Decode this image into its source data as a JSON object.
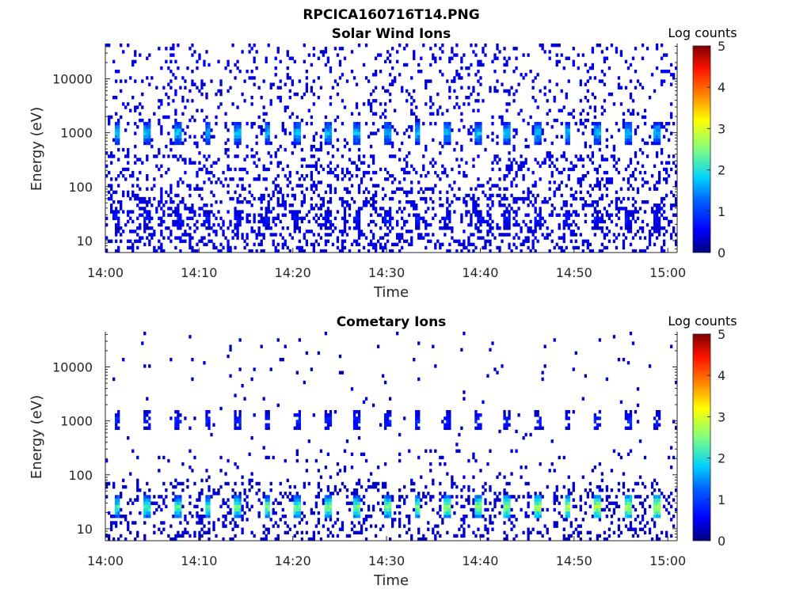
{
  "figure_title": "RPCICA160716T14.PNG",
  "chart_data": [
    {
      "type": "heatmap",
      "title": "Solar Wind Ions",
      "xlabel": "Time",
      "ylabel": "Energy (eV)",
      "x_ticks": [
        "14:00",
        "14:10",
        "14:20",
        "14:30",
        "14:40",
        "14:50",
        "15:00"
      ],
      "x_range": [
        "14:00",
        "15:01"
      ],
      "y_scale": "log",
      "y_ticks": [
        10,
        100,
        1000,
        10000
      ],
      "y_tick_labels": [
        "10",
        "100",
        "1000",
        "10000"
      ],
      "y_range": [
        6,
        45000
      ],
      "colorbar_label": "Log counts",
      "colorbar_ticks": [
        0,
        1,
        2,
        3,
        4,
        5
      ],
      "colorbar_range": [
        0,
        5
      ],
      "colormap": "jet",
      "grid": false,
      "features": [
        {
          "name": "solar wind peak",
          "energy_eV": 1000,
          "log_counts": 1.8,
          "period_min": 3.2
        },
        {
          "name": "low energy band",
          "energy_eV": 25,
          "log_counts": 0.7,
          "period_min": 3.2
        },
        {
          "name": "background",
          "energy_range_eV": [
            6,
            45000
          ],
          "log_counts": 0.3
        }
      ]
    },
    {
      "type": "heatmap",
      "title": "Cometary Ions",
      "xlabel": "Time",
      "ylabel": "Energy (eV)",
      "x_ticks": [
        "14:00",
        "14:10",
        "14:20",
        "14:30",
        "14:40",
        "14:50",
        "15:00"
      ],
      "x_range": [
        "14:00",
        "15:01"
      ],
      "y_scale": "log",
      "y_ticks": [
        10,
        100,
        1000,
        10000
      ],
      "y_tick_labels": [
        "10",
        "100",
        "1000",
        "10000"
      ],
      "y_range": [
        6,
        45000
      ],
      "colorbar_label": "Log counts",
      "colorbar_ticks": [
        0,
        1,
        2,
        3,
        4,
        5
      ],
      "colorbar_range": [
        0,
        5
      ],
      "colormap": "jet",
      "grid": false,
      "features": [
        {
          "name": "cometary ion peak",
          "energy_eV": 25,
          "log_counts": 2.3,
          "period_min": 3.2
        },
        {
          "name": "1 keV band",
          "energy_eV": 1000,
          "log_counts": 0.8,
          "period_min": 3.2
        },
        {
          "name": "background",
          "energy_range_eV": [
            6,
            45000
          ],
          "log_counts": 0.2
        }
      ]
    }
  ],
  "colors": {
    "axes": "#262626",
    "background": "#ffffff",
    "colormap_stops": [
      "#00007f",
      "#0000ff",
      "#007fff",
      "#00ffff",
      "#7fff7f",
      "#ffff00",
      "#ff7f00",
      "#ff0000",
      "#7f0000"
    ]
  }
}
